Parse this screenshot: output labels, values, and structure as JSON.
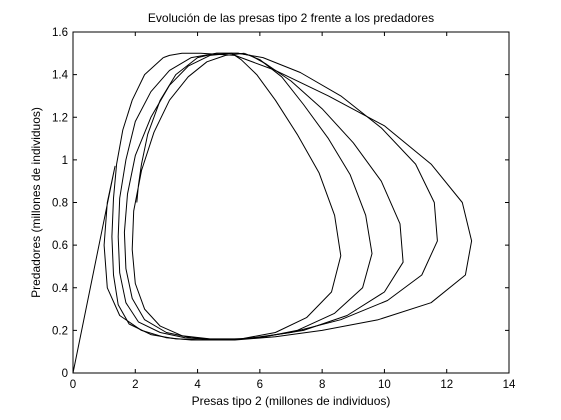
{
  "chart_data": {
    "type": "line",
    "title": "Evolución de las presas tipo 2 frente a los predadores",
    "xlabel": "Presas tipo 2 (millones de individuos)",
    "ylabel": "Predadores (millones de individuos)",
    "xlim": [
      0,
      14
    ],
    "ylim": [
      0,
      1.6
    ],
    "xticks": [
      "0",
      "2",
      "4",
      "6",
      "8",
      "10",
      "12",
      "14"
    ],
    "yticks": [
      "0",
      "0.2",
      "0.4",
      "0.6",
      "0.8",
      "1",
      "1.2",
      "1.4",
      "1.6"
    ],
    "grid": false,
    "legend": "none",
    "line_color": "#000000",
    "series": [
      {
        "values_x": [
          0.0,
          1.35,
          1.1,
          1.0,
          1.1,
          1.5,
          2.2,
          3.0,
          3.8,
          5.2,
          6.5,
          8.0,
          9.8,
          11.5,
          12.6,
          12.8,
          12.5,
          11.5,
          10.0,
          8.2,
          6.5,
          5.2,
          4.1,
          3.5,
          3.1,
          2.9
        ],
        "values_y": [
          0.0,
          0.97,
          0.8,
          0.6,
          0.4,
          0.27,
          0.2,
          0.165,
          0.155,
          0.155,
          0.17,
          0.2,
          0.25,
          0.33,
          0.46,
          0.62,
          0.8,
          0.98,
          1.16,
          1.3,
          1.42,
          1.49,
          1.5,
          1.5,
          1.49,
          1.48
        ]
      },
      {
        "values_x": [
          2.9,
          2.3,
          1.9,
          1.6,
          1.4,
          1.3,
          1.25,
          1.3,
          1.45,
          1.8,
          2.5,
          3.3,
          4.3,
          5.5,
          7.0,
          8.6,
          10.1,
          11.2,
          11.7,
          11.6,
          11.0,
          9.9,
          8.6,
          7.3,
          6.1,
          5.3,
          4.6
        ],
        "values_y": [
          1.48,
          1.4,
          1.28,
          1.14,
          0.98,
          0.82,
          0.64,
          0.46,
          0.32,
          0.23,
          0.18,
          0.16,
          0.155,
          0.16,
          0.19,
          0.25,
          0.34,
          0.46,
          0.62,
          0.8,
          0.98,
          1.15,
          1.3,
          1.41,
          1.48,
          1.5,
          1.5
        ]
      },
      {
        "values_x": [
          4.6,
          3.8,
          3.1,
          2.5,
          2.0,
          1.7,
          1.5,
          1.45,
          1.5,
          1.7,
          2.1,
          2.8,
          3.6,
          4.6,
          5.9,
          7.4,
          8.8,
          10.0,
          10.6,
          10.5,
          9.9,
          9.0,
          8.0,
          7.0,
          6.2,
          5.7,
          5.3,
          5.1
        ],
        "values_y": [
          1.5,
          1.48,
          1.42,
          1.32,
          1.18,
          1.0,
          0.82,
          0.64,
          0.47,
          0.33,
          0.24,
          0.19,
          0.165,
          0.155,
          0.165,
          0.2,
          0.27,
          0.38,
          0.52,
          0.7,
          0.9,
          1.08,
          1.24,
          1.37,
          1.45,
          1.49,
          1.5,
          1.5
        ]
      },
      {
        "values_x": [
          5.1,
          4.4,
          3.7,
          3.1,
          2.5,
          2.0,
          1.75,
          1.65,
          1.7,
          1.9,
          2.3,
          3.0,
          3.8,
          4.8,
          6.0,
          7.2,
          8.4,
          9.3,
          9.6,
          9.4,
          8.9,
          8.2,
          7.4,
          6.7,
          6.0,
          5.5
        ],
        "values_y": [
          1.5,
          1.49,
          1.44,
          1.35,
          1.2,
          1.02,
          0.84,
          0.66,
          0.49,
          0.35,
          0.25,
          0.19,
          0.165,
          0.155,
          0.165,
          0.2,
          0.28,
          0.4,
          0.56,
          0.74,
          0.93,
          1.1,
          1.26,
          1.39,
          1.47,
          1.5
        ]
      },
      {
        "values_x": [
          5.5,
          4.9,
          4.3,
          3.7,
          3.1,
          2.6,
          2.2,
          1.95,
          1.9,
          2.0,
          2.3,
          2.8,
          3.5,
          4.4,
          5.4,
          6.5,
          7.5,
          8.3,
          8.6,
          8.4,
          7.9,
          7.2,
          6.5,
          5.9,
          5.4,
          5.1,
          4.9,
          4.6,
          4.0,
          3.3,
          2.8,
          2.4,
          2.2,
          2.1,
          2.05
        ],
        "values_y": [
          1.5,
          1.49,
          1.46,
          1.39,
          1.28,
          1.13,
          0.95,
          0.76,
          0.58,
          0.42,
          0.3,
          0.22,
          0.175,
          0.16,
          0.16,
          0.19,
          0.26,
          0.38,
          0.55,
          0.74,
          0.94,
          1.12,
          1.28,
          1.4,
          1.47,
          1.5,
          1.5,
          1.5,
          1.48,
          1.4,
          1.28,
          1.12,
          0.98,
          0.88,
          0.8
        ]
      }
    ]
  }
}
